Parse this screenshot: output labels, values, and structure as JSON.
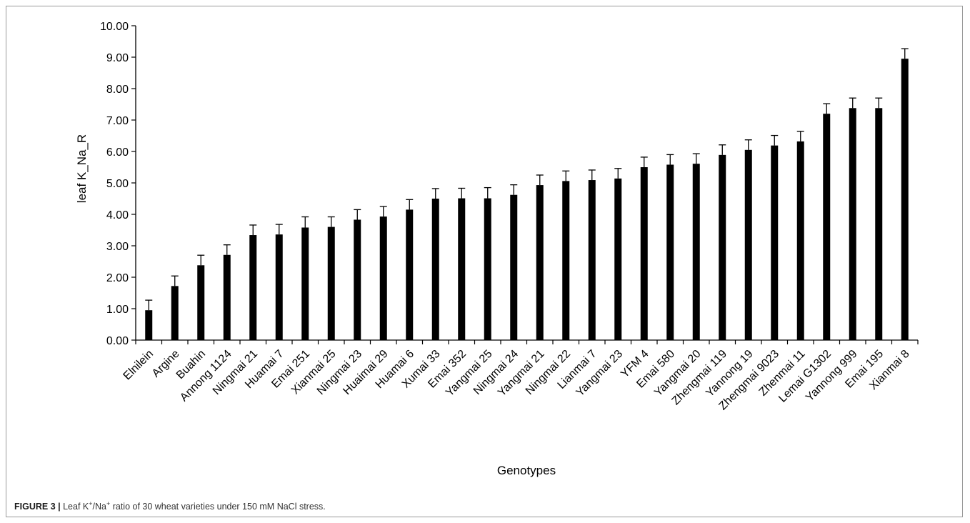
{
  "figure": {
    "label": "FIGURE 3 |",
    "caption_parts": [
      "Leaf K",
      "+",
      "/Na",
      "+",
      " ratio of 30 wheat varieties under 150 mM NaCl stress."
    ]
  },
  "chart_data": {
    "type": "bar",
    "xlabel": "Genotypes",
    "ylabel": "leaf K_Na_R",
    "ylim": [
      0,
      10
    ],
    "yticks": [
      "0.00",
      "1.00",
      "2.00",
      "3.00",
      "4.00",
      "5.00",
      "6.00",
      "7.00",
      "8.00",
      "9.00",
      "10.00"
    ],
    "grid": false,
    "bar_color": "#000000",
    "categories": [
      "Elnilein",
      "Argine",
      "Buahin",
      "Annong 1124",
      "Ningmai 21",
      "Huamai 7",
      "Emai 251",
      "Xianmai 25",
      "Ningmai 23",
      "Huaimai 29",
      "Huamai 6",
      "Xumai 33",
      "Emai 352",
      "Yangmai 25",
      "Ningmai 24",
      "Yangmai 21",
      "Ningmai 22",
      "Lianmai 7",
      "Yangmai 23",
      "YFM 4",
      "Emai 580",
      "Yangmai 20",
      "Zhengmai 119",
      "Yannong 19",
      "Zhengmai 9023",
      "Zhenmai 11",
      "Lemai G1302",
      "Yannong 999",
      "Emai 195",
      "Xianmai 8"
    ],
    "values": [
      0.95,
      1.72,
      2.38,
      2.71,
      3.34,
      3.36,
      3.58,
      3.6,
      3.83,
      3.93,
      4.15,
      4.5,
      4.51,
      4.51,
      4.62,
      4.93,
      5.06,
      5.09,
      5.14,
      5.5,
      5.58,
      5.61,
      5.89,
      6.05,
      6.19,
      6.32,
      7.2,
      7.38,
      7.38,
      8.95
    ],
    "errors": [
      0.32,
      0.32,
      0.32,
      0.32,
      0.32,
      0.32,
      0.34,
      0.32,
      0.32,
      0.32,
      0.32,
      0.32,
      0.32,
      0.34,
      0.32,
      0.32,
      0.32,
      0.32,
      0.32,
      0.32,
      0.32,
      0.32,
      0.32,
      0.32,
      0.32,
      0.32,
      0.32,
      0.32,
      0.32,
      0.32
    ]
  }
}
